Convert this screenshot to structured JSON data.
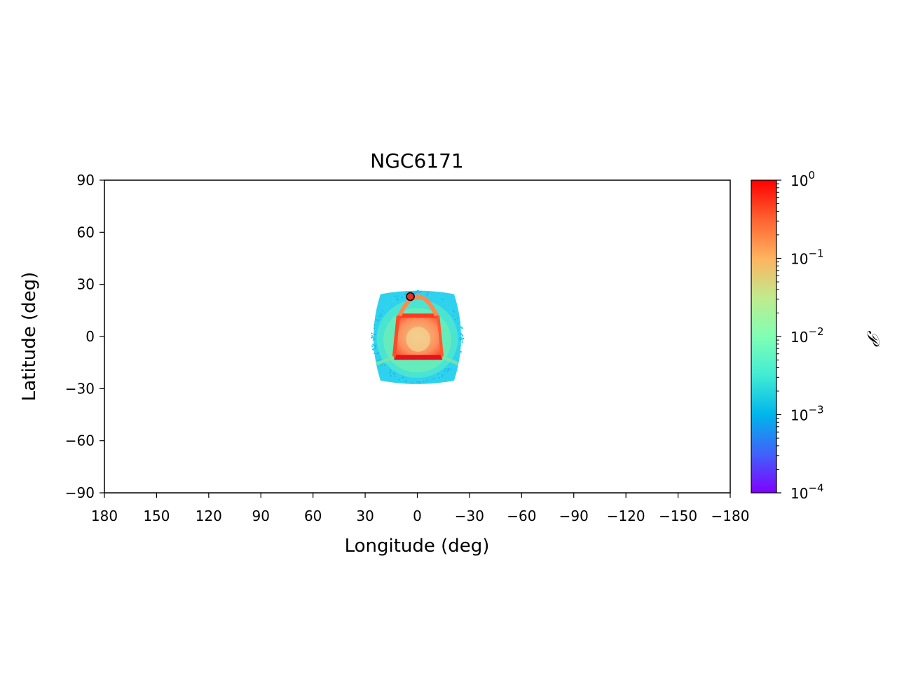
{
  "chart_data": {
    "type": "heatmap",
    "title": "NGC6171",
    "xlabel": "Longitude (deg)",
    "ylabel": "Latitude (deg)",
    "xlim": [
      180,
      -180
    ],
    "ylim": [
      -90,
      90
    ],
    "x_ticks": [
      180,
      150,
      120,
      90,
      60,
      30,
      0,
      -30,
      -60,
      -90,
      -120,
      -150,
      -180
    ],
    "x_tick_labels": [
      "180",
      "150",
      "120",
      "90",
      "60",
      "30",
      "0",
      "−30",
      "−60",
      "−90",
      "−120",
      "−150",
      "−180"
    ],
    "y_ticks": [
      90,
      60,
      30,
      0,
      -30,
      -60,
      -90
    ],
    "y_tick_labels": [
      "90",
      "60",
      "30",
      "0",
      "−30",
      "−60",
      "−90"
    ],
    "grid": false,
    "colorbar": {
      "label": "𝒫",
      "scale": "log",
      "range": [
        0.0001,
        1
      ],
      "colormap": "rainbow",
      "major_ticks": [
        1,
        0.1,
        0.01,
        0.001,
        0.0001
      ],
      "major_tick_labels": [
        {
          "base": "10",
          "exp": "0"
        },
        {
          "base": "10",
          "exp": "−1"
        },
        {
          "base": "10",
          "exp": "−2"
        },
        {
          "base": "10",
          "exp": "−3"
        },
        {
          "base": "10",
          "exp": "−4"
        }
      ]
    },
    "density_region": {
      "outer_extent_lon": [
        -26,
        26
      ],
      "outer_extent_lat": [
        -27,
        26
      ],
      "inner_box_lon": [
        -12,
        11
      ],
      "inner_box_lat": [
        -12,
        12
      ],
      "typical_outer_value": 0.003,
      "typical_inner_value": 0.15
    },
    "marker": {
      "lon": 4,
      "lat": 23,
      "color": "#e8302a"
    }
  }
}
